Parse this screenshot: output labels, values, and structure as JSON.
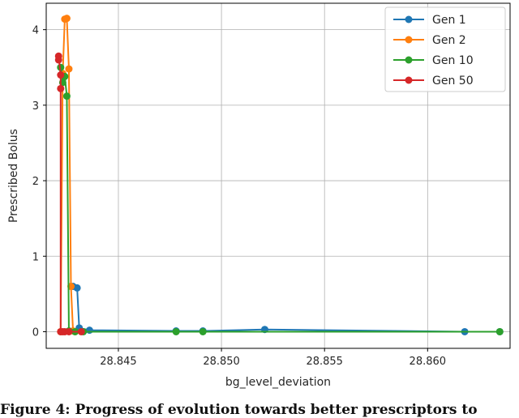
{
  "caption": "Figure 4: Progress of evolution towards better prescriptors to",
  "chart_data": {
    "type": "line",
    "title": "",
    "xlabel": "bg_level_deviation",
    "ylabel": "Prescribed Bolus",
    "xlim": [
      28.8415,
      28.864
    ],
    "ylim": [
      -0.22,
      4.35
    ],
    "xticks": [
      28.845,
      28.85,
      28.855,
      28.86
    ],
    "xtick_labels": [
      "28.845",
      "28.850",
      "28.855",
      "28.860"
    ],
    "yticks": [
      0,
      1,
      2,
      3,
      4
    ],
    "ytick_labels": [
      "0",
      "1",
      "2",
      "3",
      "4"
    ],
    "grid": true,
    "legend_position": "top-right",
    "series": [
      {
        "name": "Gen 1",
        "color": "#1f77b4",
        "x": [
          28.8428,
          28.843,
          28.8431,
          28.8436,
          28.8478,
          28.8491,
          28.8521,
          28.8618,
          28.8635
        ],
        "y": [
          0.6,
          0.58,
          0.05,
          0.02,
          0.01,
          0.01,
          0.03,
          0.0,
          0.0
        ]
      },
      {
        "name": "Gen 2",
        "color": "#ff7f0e",
        "x": [
          28.8422,
          28.8423,
          28.8424,
          28.8425,
          28.8426,
          28.8427,
          28.8428,
          28.8429
        ],
        "y": [
          0.0,
          3.42,
          4.14,
          4.15,
          3.48,
          0.6,
          0.01,
          0.0
        ]
      },
      {
        "name": "Gen 10",
        "color": "#2ca02c",
        "x": [
          28.8422,
          28.8423,
          28.8424,
          28.8425,
          28.8426,
          28.8429,
          28.8433,
          28.8478,
          28.8491,
          28.8635
        ],
        "y": [
          3.5,
          3.3,
          3.38,
          3.12,
          0.01,
          0.0,
          0.0,
          0.0,
          0.0,
          0.0
        ]
      },
      {
        "name": "Gen 50",
        "color": "#d62728",
        "x": [
          28.8421,
          28.8421,
          28.8422,
          28.8422,
          28.8422,
          28.8423,
          28.8424,
          28.8426,
          28.8432
        ],
        "y": [
          3.6,
          3.65,
          3.4,
          3.22,
          0.0,
          0.0,
          0.0,
          0.0,
          0.0
        ]
      }
    ]
  }
}
